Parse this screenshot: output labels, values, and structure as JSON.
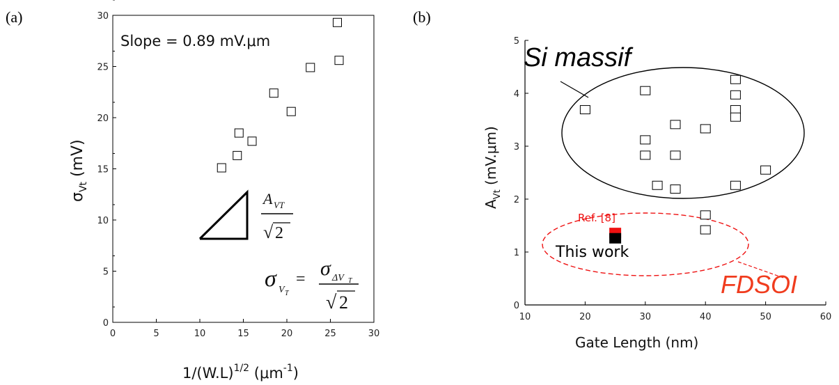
{
  "panels": {
    "a_label": "(a)",
    "b_label": "(b)"
  },
  "chart_data": [
    {
      "type": "scatter",
      "panel": "(a)",
      "x": [
        12.5,
        14.3,
        14.5,
        16.0,
        18.5,
        20.5,
        22.7,
        25.8,
        26.0
      ],
      "y": [
        15.1,
        16.3,
        18.5,
        17.7,
        22.4,
        20.6,
        24.9,
        29.3,
        25.6
      ],
      "xlim": [
        0,
        30
      ],
      "ylim": [
        0,
        30
      ],
      "xticks": [
        "0",
        "5",
        "10",
        "15",
        "20",
        "25",
        "30"
      ],
      "yticks": [
        "0",
        "5",
        "10",
        "15",
        "20",
        "25",
        "30"
      ],
      "xlabel": {
        "main": "1/(W.L)",
        "sup1": "1/2",
        "unit_open": " (μm",
        "sup2": "-1",
        "unit_close": ")"
      },
      "ylabel": {
        "sigma": "σ",
        "sub": "Vt",
        "unit": " (mV)"
      },
      "annotations": {
        "slope": "Slope = 0.89 mV.μm",
        "avt_num_A": "A",
        "avt_num_sub": "VT",
        "sqrt": "√",
        "two": "2",
        "formula_sigma": "σ",
        "formula_sub_V": "V",
        "formula_sub_T": "T",
        "formula_eq": "=",
        "formula_num_sigma": "σ",
        "formula_num_sub": "ΔV",
        "formula_num_subT": "T"
      },
      "grid": false
    },
    {
      "type": "scatter",
      "panel": "(b)",
      "series": [
        {
          "name": "Si massif",
          "x": [
            20,
            30,
            30,
            30,
            32,
            35,
            35,
            35,
            40,
            40,
            40,
            45,
            45,
            45,
            45,
            45,
            50
          ],
          "y": [
            3.69,
            4.05,
            3.12,
            2.83,
            2.26,
            3.41,
            2.83,
            2.19,
            3.33,
            1.7,
            1.42,
            4.26,
            3.97,
            3.69,
            3.55,
            2.26,
            2.55
          ]
        },
        {
          "name": "Ref. [8]",
          "x": [
            25
          ],
          "y": [
            1.36
          ],
          "color": "#ee1111"
        },
        {
          "name": "This work",
          "x": [
            25
          ],
          "y": [
            1.26
          ],
          "color": "#000000"
        }
      ],
      "xlim": [
        10,
        60
      ],
      "ylim": [
        0,
        5
      ],
      "xticks": [
        "10",
        "20",
        "30",
        "40",
        "50",
        "60"
      ],
      "yticks": [
        "0",
        "1",
        "2",
        "3",
        "4",
        "5"
      ],
      "xlabel": "Gate Length (nm)",
      "ylabel": {
        "A": "A",
        "sub": "Vt",
        "unit": " (mV.μm)"
      },
      "annotations": {
        "si_massif": "Si massif",
        "fdsoi": "FDSOI",
        "ref8": "Ref. [8]",
        "this_work": "This work"
      },
      "colors": {
        "fdsoi": "#f03c1e",
        "red": "#ee1111"
      },
      "grid": false
    }
  ]
}
